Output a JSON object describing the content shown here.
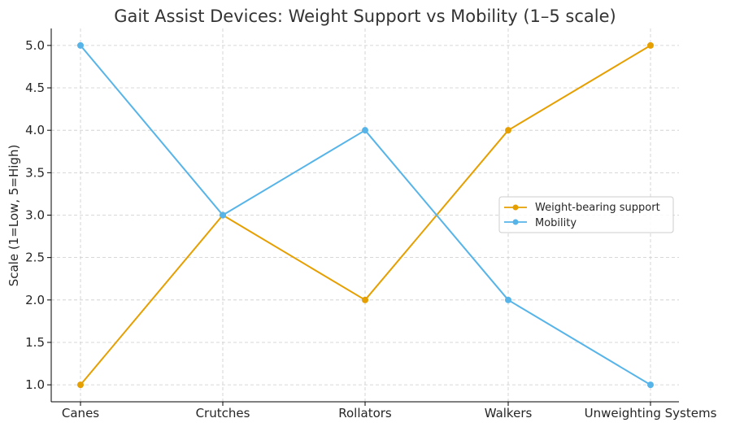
{
  "chart_data": {
    "type": "line",
    "title": "Gait Assist Devices: Weight Support vs Mobility (1–5 scale)",
    "xlabel": "",
    "ylabel": "Scale (1=Low, 5=High)",
    "categories": [
      "Canes",
      "Crutches",
      "Rollators",
      "Walkers",
      "Unweighting Systems"
    ],
    "ylim": [
      0.8,
      5.2
    ],
    "yticks": [
      "1.0",
      "1.5",
      "2.0",
      "2.5",
      "3.0",
      "3.5",
      "4.0",
      "4.5",
      "5.0"
    ],
    "grid": true,
    "legend_position": "center-right",
    "series": [
      {
        "name": "Weight-bearing support",
        "color": "#E69F00",
        "values": [
          1,
          3,
          2,
          4,
          5
        ]
      },
      {
        "name": "Mobility",
        "color": "#56B4E9",
        "values": [
          5,
          3,
          4,
          2,
          1
        ]
      }
    ]
  }
}
